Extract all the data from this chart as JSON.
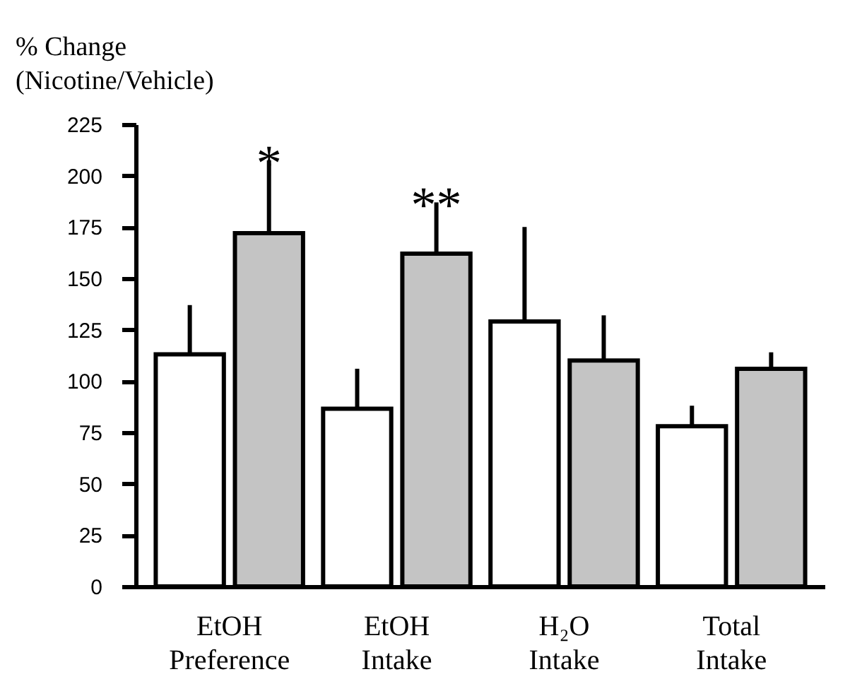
{
  "chart_data": {
    "type": "bar",
    "ylabel": "% Change\n(Nicotine/Vehicle)",
    "categories": [
      "EtOH Preference",
      "EtOH Intake",
      "H₂O Intake",
      "Total Intake"
    ],
    "series": [
      {
        "color": "#ffffff",
        "values": [
          113,
          86.5,
          129,
          78
        ],
        "errors": [
          [
            113,
            137
          ],
          [
            86.5,
            106
          ],
          [
            129,
            175
          ],
          [
            78,
            88
          ]
        ]
      },
      {
        "color": "#c4c4c4",
        "values": [
          172,
          162,
          110,
          106
        ],
        "errors": [
          [
            172,
            207.5
          ],
          [
            162,
            187
          ],
          [
            110,
            132
          ],
          [
            106,
            114
          ]
        ]
      }
    ],
    "ylim": [
      0,
      225
    ],
    "yticks": [
      0,
      25,
      50,
      75,
      100,
      125,
      150,
      175,
      200,
      225
    ],
    "annotations": [
      {
        "text": "*",
        "x": "EtOH Preference",
        "y": 172
      },
      {
        "text": "**",
        "x": "EtOH Intake",
        "y": 162
      }
    ],
    "legend": false
  }
}
